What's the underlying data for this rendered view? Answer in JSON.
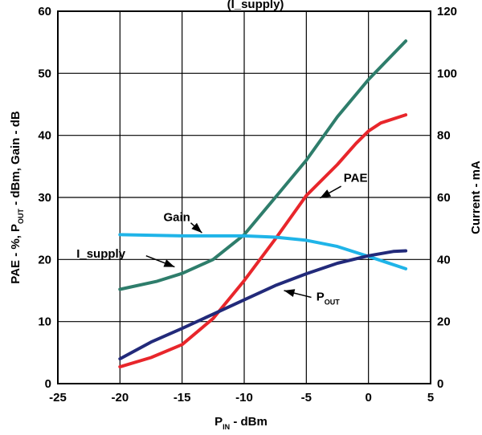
{
  "chart_data": {
    "type": "line",
    "title": "(I_supply)",
    "xlabel": {
      "main": "P",
      "sub": "IN",
      "rest": " - dBm"
    },
    "ylabel_left": {
      "pre": "PAE - %, P",
      "sub": "OUT",
      "rest": " - dBm, Gain - dB"
    },
    "ylabel_right": "Current - mA",
    "xlim": [
      -25,
      5
    ],
    "ylim_left": [
      0,
      60
    ],
    "ylim_right": [
      0,
      120
    ],
    "x_ticks": [
      -25,
      -20,
      -15,
      -10,
      -5,
      0,
      5
    ],
    "y_left_ticks": [
      0,
      10,
      20,
      30,
      40,
      50,
      60
    ],
    "y_right_ticks": [
      0,
      20,
      40,
      60,
      80,
      100,
      120
    ],
    "grid": true,
    "series": [
      {
        "name": "I_supply",
        "axis": "right",
        "color": "#2e7d6b",
        "x": [
          -20,
          -17,
          -15,
          -12.5,
          -10,
          -7.5,
          -5,
          -2.5,
          0,
          3
        ],
        "y": [
          30.4,
          33,
          35.5,
          40,
          48,
          60,
          72,
          86,
          98,
          110.4
        ]
      },
      {
        "name": "PAE",
        "axis": "left",
        "color": "#e8262b",
        "x": [
          -20,
          -17.5,
          -15,
          -12.5,
          -10,
          -7.5,
          -5,
          -2.5,
          -1,
          0,
          1,
          3
        ],
        "y": [
          2.7,
          4.2,
          6.3,
          10.5,
          16.6,
          23.3,
          30.3,
          35.3,
          38.7,
          40.7,
          42,
          43.3
        ]
      },
      {
        "name": "Gain",
        "axis": "left",
        "color": "#1fb4e8",
        "x": [
          -20,
          -15,
          -12.5,
          -10,
          -7.5,
          -5,
          -2.5,
          0,
          1.5,
          3
        ],
        "y": [
          24,
          23.8,
          23.8,
          23.8,
          23.6,
          23.1,
          22.1,
          20.5,
          19.5,
          18.5
        ]
      },
      {
        "name": "P_OUT",
        "axis": "left",
        "color": "#222a7a",
        "x": [
          -20,
          -17.5,
          -15,
          -12.5,
          -10,
          -7.5,
          -5,
          -2.5,
          0,
          2,
          3
        ],
        "y": [
          4,
          6.7,
          8.9,
          11.2,
          13.5,
          15.8,
          17.7,
          19.4,
          20.6,
          21.3,
          21.4
        ]
      }
    ],
    "annotations": [
      {
        "text": "PAE",
        "sub": ""
      },
      {
        "text": "Gain",
        "sub": ""
      },
      {
        "text": "I_supply",
        "sub": ""
      },
      {
        "text": "P",
        "sub": "OUT"
      }
    ]
  }
}
